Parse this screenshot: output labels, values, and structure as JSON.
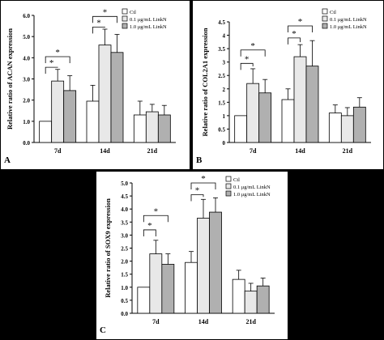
{
  "chart_data": [
    {
      "type": "bar",
      "panel_letter": "A",
      "ylabel": "Relative ratio of ACAN expression",
      "categories": [
        "7d",
        "14d",
        "21d"
      ],
      "ylim": [
        0,
        6
      ],
      "yticks": [
        "0.0",
        "1.0",
        "2.0",
        "3.0",
        "4.0",
        "5.0",
        "6.0"
      ],
      "legend_position": "top-right",
      "grid": false,
      "series": [
        {
          "name": "Ctl",
          "values": [
            1.0,
            1.95,
            1.3
          ],
          "errors": [
            0,
            0.75,
            0.65
          ]
        },
        {
          "name": "0.1 μg/mL LinkN",
          "values": [
            2.9,
            4.6,
            1.45
          ],
          "errors": [
            0.55,
            0.75,
            0.35
          ]
        },
        {
          "name": "1.0 μg/mL LinkN",
          "values": [
            2.45,
            4.25,
            1.3
          ],
          "errors": [
            0.7,
            0.85,
            0.45
          ]
        }
      ],
      "annotations": [
        "*",
        "*",
        "*",
        "*"
      ]
    },
    {
      "type": "bar",
      "panel_letter": "B",
      "ylabel": "Relative ratio of COL2A1 expression",
      "categories": [
        "7d",
        "14d",
        "21d"
      ],
      "ylim": [
        0,
        4.5
      ],
      "yticks": [
        "0",
        "0.5",
        "1",
        "1.5",
        "2",
        "2.5",
        "3",
        "3.5",
        "4",
        "4.5"
      ],
      "legend_position": "top-right",
      "grid": false,
      "series": [
        {
          "name": "Ctl",
          "values": [
            1.0,
            1.6,
            1.1
          ],
          "errors": [
            0,
            0.4,
            0.3
          ]
        },
        {
          "name": "0.1 μg/mL LinkN",
          "values": [
            2.2,
            3.2,
            1.0
          ],
          "errors": [
            0.55,
            0.45,
            0.3
          ]
        },
        {
          "name": "1.0 μg/mL LinkN",
          "values": [
            1.85,
            2.85,
            1.32
          ],
          "errors": [
            0.5,
            0.95,
            0.35
          ]
        }
      ],
      "annotations": [
        "*",
        "*",
        "*",
        "*"
      ]
    },
    {
      "type": "bar",
      "panel_letter": "C",
      "ylabel": "Relative ratio of SOX9 expression",
      "categories": [
        "7d",
        "14d",
        "21d"
      ],
      "ylim": [
        0,
        5
      ],
      "yticks": [
        "0.0",
        "0.5",
        "1.0",
        "1.5",
        "2.0",
        "2.5",
        "3.0",
        "3.5",
        "4.0",
        "4.5",
        "5.0"
      ],
      "legend_position": "top-right",
      "grid": false,
      "series": [
        {
          "name": "Ctl",
          "values": [
            1.0,
            1.95,
            1.3
          ],
          "errors": [
            0,
            0.42,
            0.35
          ]
        },
        {
          "name": "0.1 μg/mL LinkN",
          "values": [
            2.28,
            3.65,
            0.85
          ],
          "errors": [
            0.52,
            0.72,
            0.3
          ]
        },
        {
          "name": "1.0 μg/mL LinkN",
          "values": [
            1.88,
            3.88,
            1.05
          ],
          "errors": [
            0.4,
            0.55,
            0.3
          ]
        }
      ],
      "annotations": [
        "*",
        "*",
        "*",
        "*"
      ]
    }
  ],
  "colors": {
    "ctl": "#ffffff",
    "low": "#e8e8e8",
    "high": "#b0b0b0",
    "stroke": "#000000"
  }
}
